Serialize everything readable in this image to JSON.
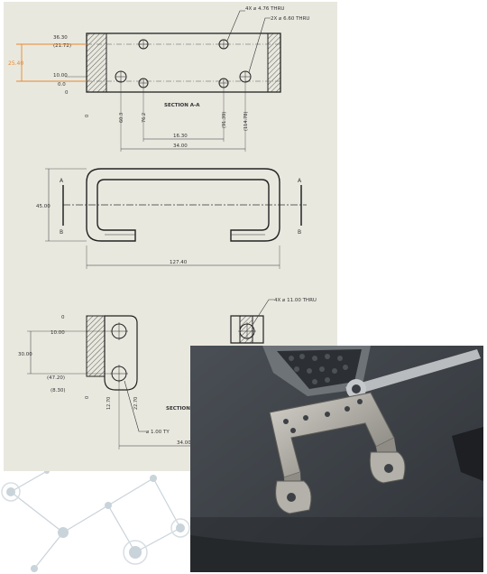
{
  "colors": {
    "sheet": "#e9e8df",
    "line": "#222222",
    "dimension": "#333333",
    "highlight": "#e8892f",
    "network": "#c9d3da",
    "table": "#3b3f44",
    "metal": "#b8b6ae"
  },
  "section_top": {
    "hole_callout_small": "4X ⌀ 4.76 THRU",
    "hole_callout_medium": "2X ⌀ 6.60 THRU",
    "label": "SECTION A-A",
    "left_dims": [
      "36.30",
      "(21.72)",
      "10.00",
      "0.0",
      "0"
    ],
    "highlight_dim": "25.40",
    "vertical_dims": [
      "0",
      "60.3",
      "76.2",
      "(91.39)",
      "(114.78)"
    ],
    "span_small": "16.30",
    "span_large": "34.00"
  },
  "plan_view": {
    "section_letters": [
      "A",
      "A",
      "B",
      "B"
    ],
    "height_dim": "45.00",
    "width_dim": "127.40"
  },
  "section_bottom": {
    "hole_callout": "4X ⌀ 11.00 THRU",
    "left_dims": [
      "0",
      "10.00",
      "(47.20)",
      "(8.30)"
    ],
    "height_dim": "30.00",
    "vertical_dims": [
      "0",
      "12.70",
      "22.70"
    ],
    "label": "SECTION",
    "hole_callout_2": "⌀ 1.00 TY",
    "span": "34.00"
  }
}
